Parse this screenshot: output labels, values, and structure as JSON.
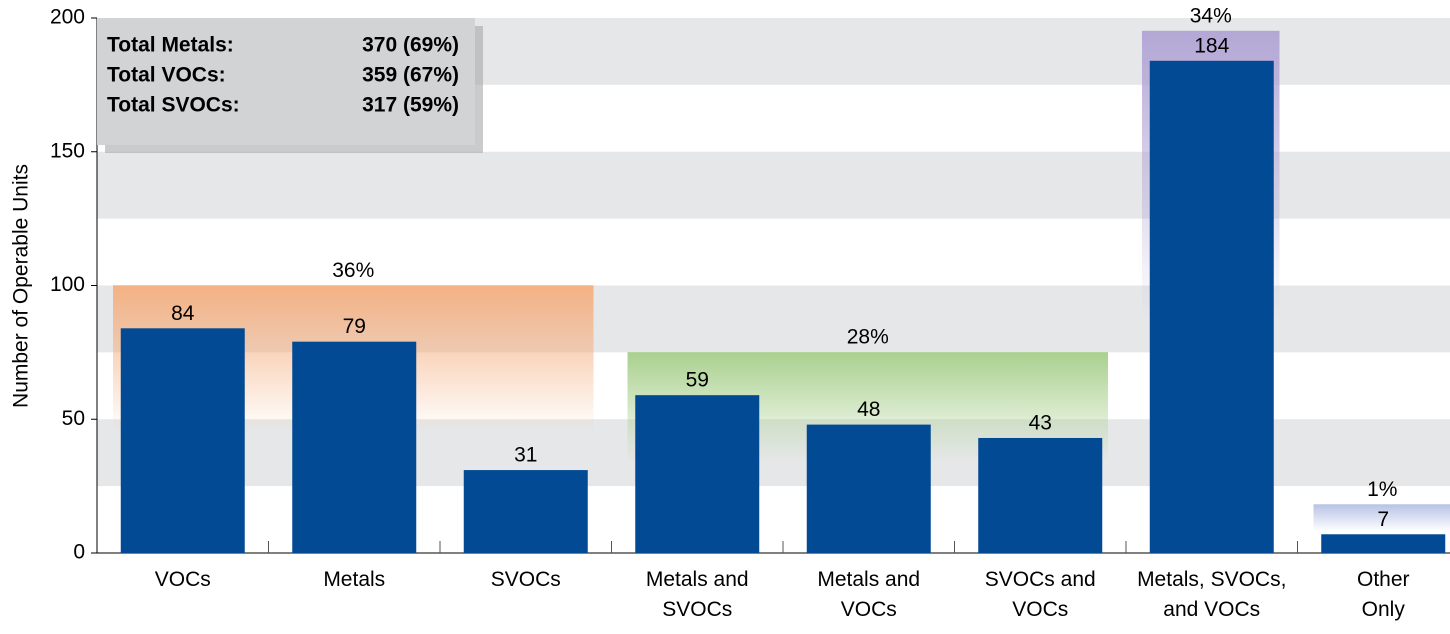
{
  "chart_data": {
    "type": "bar",
    "y_label": "Number of Operable Units",
    "categories": [
      "VOCs",
      "Metals",
      "SVOCs",
      "Metals and\nSVOCs",
      "Metals and\nVOCs",
      "SVOCs and\nVOCs",
      "Metals, SVOCs,\nand VOCs",
      "Other\nOnly"
    ],
    "values": [
      84,
      79,
      31,
      59,
      48,
      43,
      184,
      7
    ],
    "color": "#024a93",
    "ylim": [
      0,
      200
    ],
    "yticks": [
      0,
      50,
      100,
      150,
      200
    ],
    "grid": true,
    "groups": [
      {
        "label": "36%",
        "first": 0,
        "last": 2,
        "color": "#f4b183"
      },
      {
        "label": "28%",
        "first": 3,
        "last": 5,
        "color": "#a9d08e"
      },
      {
        "label": "34%",
        "first": 6,
        "last": 6,
        "color": "#b4a7d6"
      },
      {
        "label": "1%",
        "first": 7,
        "last": 7,
        "color": "#b7c2e6"
      }
    ],
    "summary": [
      {
        "label": "Total Metals:",
        "value": "370 (69%)"
      },
      {
        "label": "Total VOCs:",
        "value": "359 (67%)"
      },
      {
        "label": "Total SVOCs:",
        "value": "317 (59%)"
      }
    ]
  }
}
